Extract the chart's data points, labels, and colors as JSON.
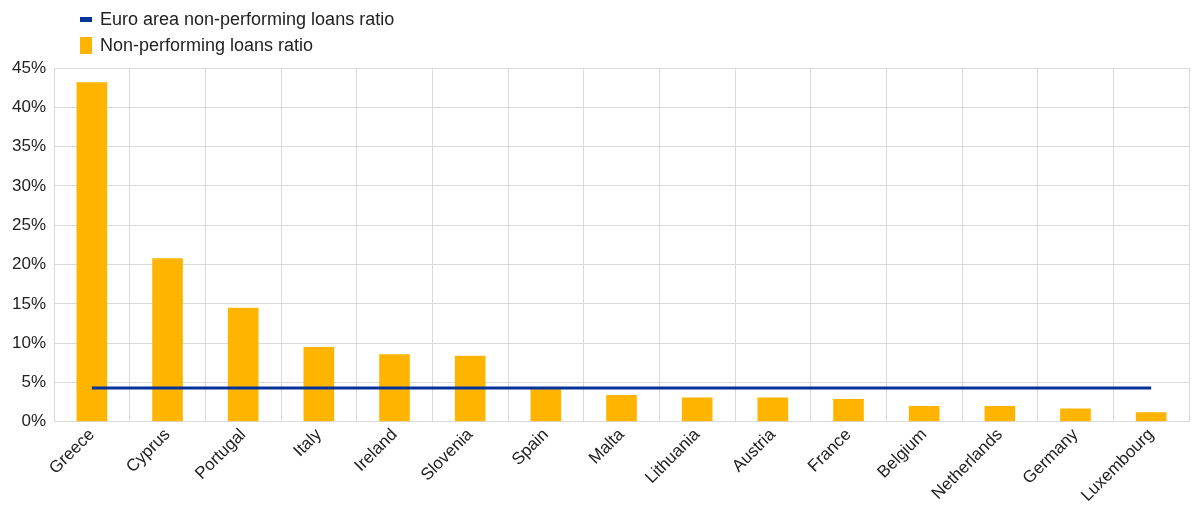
{
  "chart_data": {
    "type": "bar",
    "categories": [
      "Greece",
      "Cyprus",
      "Portugal",
      "Italy",
      "Ireland",
      "Slovenia",
      "Spain",
      "Malta",
      "Lithuania",
      "Austria",
      "France",
      "Belgium",
      "Netherlands",
      "Germany",
      "Luxembourg"
    ],
    "series": [
      {
        "name": "Euro area non-performing loans ratio",
        "type": "line",
        "color": "#003299",
        "values": [
          4.3,
          4.3,
          4.3,
          4.3,
          4.3,
          4.3,
          4.3,
          4.3,
          4.3,
          4.3,
          4.3,
          4.3,
          4.3,
          4.3,
          4.3
        ]
      },
      {
        "name": "Non-performing loans ratio",
        "color": "#ffb400",
        "values": [
          43.2,
          20.8,
          14.5,
          9.5,
          8.6,
          8.4,
          4.2,
          3.4,
          3.1,
          3.1,
          2.9,
          2.0,
          2.0,
          1.7,
          1.2
        ]
      }
    ],
    "ylim": [
      0,
      45
    ],
    "yticks": [
      {
        "value": 0,
        "label": "0%"
      },
      {
        "value": 5,
        "label": "5%"
      },
      {
        "value": 10,
        "label": "10%"
      },
      {
        "value": 15,
        "label": "15%"
      },
      {
        "value": 20,
        "label": "20%"
      },
      {
        "value": 25,
        "label": "25%"
      },
      {
        "value": 30,
        "label": "30%"
      },
      {
        "value": 35,
        "label": "35%"
      },
      {
        "value": 40,
        "label": "40%"
      },
      {
        "value": 45,
        "label": "45%"
      }
    ],
    "grid": true,
    "legend": "top left",
    "marker": "none"
  }
}
